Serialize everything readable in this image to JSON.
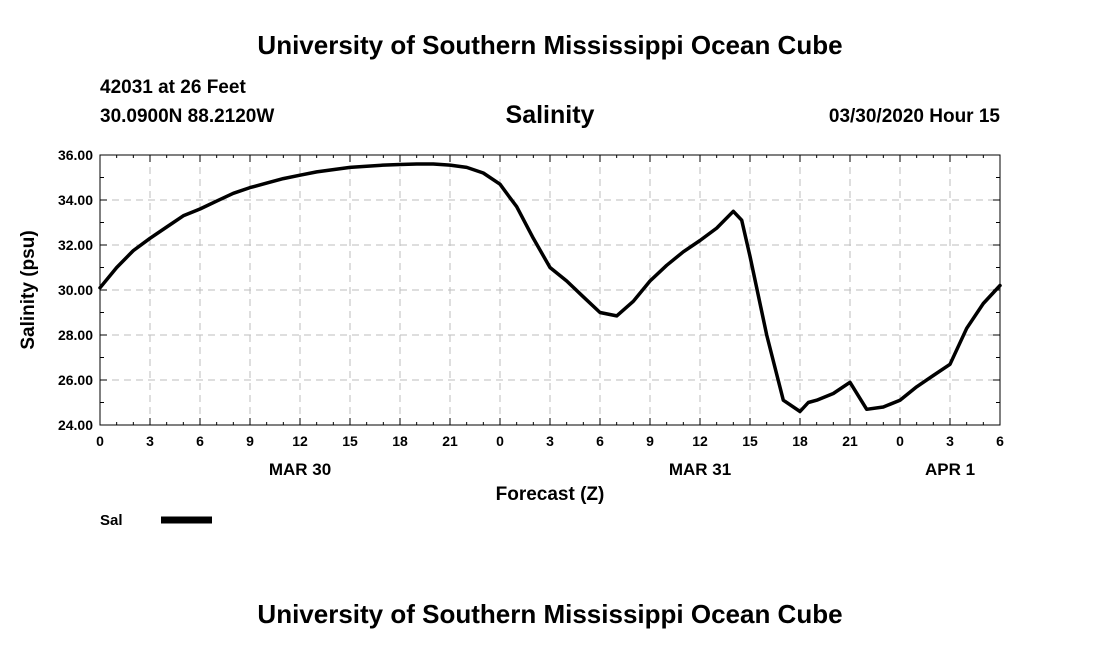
{
  "header": {
    "title": "University of Southern Mississippi Ocean Cube",
    "station": "42031 at 26 Feet",
    "coordinates": "30.0900N 88.2120W",
    "variable": "Salinity",
    "datetime": "03/30/2020 Hour 15"
  },
  "footer": {
    "title": "University of Southern Mississippi Ocean Cube"
  },
  "chart_data": {
    "type": "line",
    "xlabel": "Forecast (Z)",
    "ylabel": "Salinity (psu)",
    "xlim": [
      0,
      54
    ],
    "ylim": [
      24,
      36
    ],
    "x_ticks": [
      0,
      3,
      6,
      9,
      12,
      15,
      18,
      21,
      24,
      27,
      30,
      33,
      36,
      39,
      42,
      45,
      48,
      51,
      54
    ],
    "x_tick_labels": [
      "0",
      "3",
      "6",
      "9",
      "12",
      "15",
      "18",
      "21",
      "0",
      "3",
      "6",
      "9",
      "12",
      "15",
      "18",
      "21",
      "0",
      "3",
      "6"
    ],
    "y_ticks": [
      24,
      26,
      28,
      30,
      32,
      34,
      36
    ],
    "y_tick_labels": [
      "24.00",
      "26.00",
      "28.00",
      "30.00",
      "32.00",
      "34.00",
      "36.00"
    ],
    "date_labels": [
      {
        "label": "MAR 30",
        "x": 12
      },
      {
        "label": "MAR 31",
        "x": 36
      },
      {
        "label": "APR 1",
        "x": 51
      }
    ],
    "grid": true,
    "legend": "bottom-left",
    "series": [
      {
        "name": "Sal",
        "color": "#000000",
        "x": [
          0,
          1,
          2,
          3,
          4,
          5,
          6,
          7,
          8,
          9,
          10,
          11,
          12,
          13,
          14,
          15,
          16,
          17,
          18,
          19,
          20,
          21,
          22,
          23,
          24,
          24.5,
          25,
          26,
          27,
          28,
          29,
          30,
          31,
          32,
          33,
          34,
          35,
          36,
          37,
          38,
          38.5,
          39,
          40,
          41,
          42,
          42.5,
          43,
          44,
          45,
          46,
          47,
          48,
          49,
          50,
          51,
          52,
          53,
          54
        ],
        "y": [
          30.1,
          31.0,
          31.75,
          32.3,
          32.8,
          33.3,
          33.6,
          33.95,
          34.3,
          34.55,
          34.75,
          34.95,
          35.1,
          35.25,
          35.35,
          35.45,
          35.5,
          35.55,
          35.58,
          35.6,
          35.6,
          35.55,
          35.45,
          35.2,
          34.7,
          34.2,
          33.7,
          32.3,
          31.0,
          30.4,
          29.7,
          29.0,
          28.85,
          29.5,
          30.4,
          31.1,
          31.7,
          32.2,
          32.75,
          33.5,
          33.1,
          31.5,
          28.0,
          25.1,
          24.6,
          25.0,
          25.1,
          25.4,
          25.9,
          24.7,
          24.8,
          25.1,
          25.7,
          26.2,
          26.7,
          28.3,
          29.4,
          30.2
        ]
      }
    ]
  }
}
